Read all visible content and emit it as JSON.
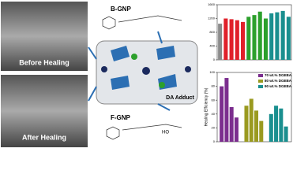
{
  "labels": {
    "before": "Before Healing",
    "after": "After Healing",
    "b_gnp": "B-GNP",
    "f_gnp": "F-GNP",
    "da": "DA Adduct",
    "ho": "HO"
  },
  "chart_data": [
    {
      "type": "bar",
      "categories": [
        null,
        null,
        null,
        null,
        null,
        null,
        null,
        null,
        null,
        null,
        null,
        null,
        null
      ],
      "values": [
        1050,
        1200,
        1180,
        1150,
        1100,
        1250,
        1300,
        1400,
        1200,
        1350,
        1380,
        1420,
        1250
      ],
      "colors": [
        "#8c8c8c",
        "#e0202a",
        "#e0202a",
        "#e0202a",
        "#e0202a",
        "#2ca02c",
        "#2ca02c",
        "#2ca02c",
        "#2ca02c",
        "#1a8f8f",
        "#1a8f8f",
        "#1a8f8f",
        "#1a8f8f"
      ],
      "ylim": [
        0,
        1600
      ],
      "yticks": [
        0,
        400,
        800,
        1200,
        1600
      ],
      "grid": false
    },
    {
      "type": "grouped",
      "y_label": "Healing Efficiency (%)",
      "series": [
        {
          "name": "70 wt.% DGEBA",
          "color": "#7b2d8e",
          "values": [
            80,
            92,
            50,
            35
          ]
        },
        {
          "name": "80 wt.% DGEBA",
          "color": "#9a9a20",
          "values": [
            52,
            62,
            45,
            30
          ]
        },
        {
          "name": "90 wt.% DGEBA",
          "color": "#1a8f8f",
          "values": [
            40,
            52,
            48,
            22
          ]
        }
      ],
      "ylim": [
        0,
        100
      ],
      "yticks": [
        0,
        20,
        40,
        60,
        80,
        100
      ],
      "legend": "upper-right"
    }
  ]
}
